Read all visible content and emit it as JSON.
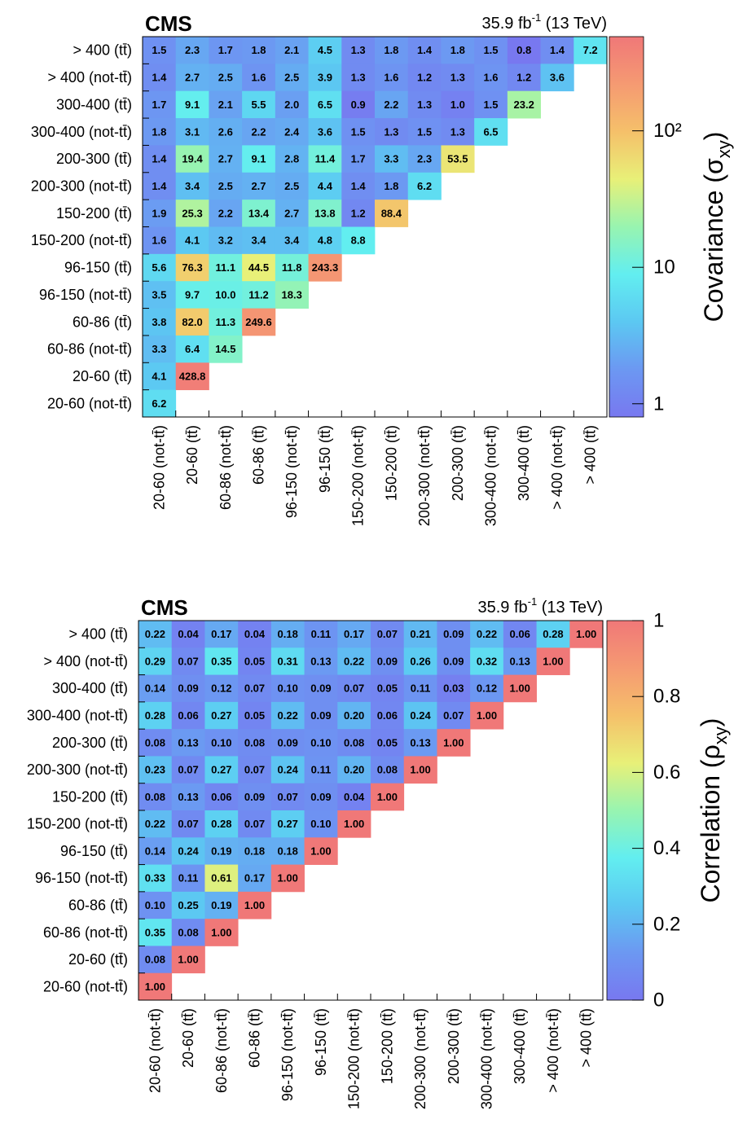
{
  "chart_data": [
    {
      "type": "heatmap",
      "title": "CMS",
      "lumi": [
        "35.9 fb",
        "-1",
        " (13 TeV)"
      ],
      "zlabel": [
        "Covariance (σ",
        "xy",
        ")"
      ],
      "log_z": true,
      "zlim": [
        0.8,
        490
      ],
      "zticks": [
        1,
        10,
        {
          "value": 100,
          "label": "10²"
        }
      ],
      "colorscale": [
        "#7878f0",
        "#6c98f2",
        "#5cc8f2",
        "#62eef0",
        "#98f4b0",
        "#e8f078",
        "#f5c06a",
        "#f59a72",
        "#f07878"
      ],
      "x_categories": [
        "20-60 (not-tt̄)",
        "20-60 (tt̄)",
        "60-86 (not-tt̄)",
        "60-86 (tt̄)",
        "96-150 (not-tt̄)",
        "96-150 (tt̄)",
        "150-200 (not-tt̄)",
        "150-200 (tt̄)",
        "200-300 (not-tt̄)",
        "200-300 (tt̄)",
        "300-400 (not-tt̄)",
        "300-400 (tt̄)",
        "> 400 (not-tt̄)",
        "> 400 (tt̄)"
      ],
      "y_categories": [
        "> 400 (tt̄)",
        "> 400 (not-tt̄)",
        "300-400 (tt̄)",
        "300-400 (not-tt̄)",
        "200-300 (tt̄)",
        "200-300 (not-tt̄)",
        "150-200 (tt̄)",
        "150-200 (not-tt̄)",
        "96-150 (tt̄)",
        "96-150 (not-tt̄)",
        "60-86 (tt̄)",
        "60-86 (not-tt̄)",
        "20-60 (tt̄)",
        "20-60 (not-tt̄)"
      ],
      "values": [
        [
          1.5,
          2.3,
          1.7,
          1.8,
          2.1,
          4.5,
          1.3,
          1.8,
          1.4,
          1.8,
          1.5,
          0.8,
          1.4,
          7.2
        ],
        [
          1.4,
          2.7,
          2.5,
          1.6,
          2.5,
          3.9,
          1.3,
          1.6,
          1.2,
          1.3,
          1.6,
          1.2,
          3.6,
          null
        ],
        [
          1.7,
          9.1,
          2.1,
          5.5,
          2.0,
          6.5,
          0.9,
          2.2,
          1.3,
          1.0,
          1.5,
          23.2,
          null,
          null
        ],
        [
          1.8,
          3.1,
          2.6,
          2.2,
          2.4,
          3.6,
          1.5,
          1.3,
          1.5,
          1.3,
          6.5,
          null,
          null,
          null
        ],
        [
          1.4,
          19.4,
          2.7,
          9.1,
          2.8,
          11.4,
          1.7,
          3.3,
          2.3,
          53.5,
          null,
          null,
          null,
          null
        ],
        [
          1.4,
          3.4,
          2.5,
          2.7,
          2.5,
          4.4,
          1.4,
          1.8,
          6.2,
          null,
          null,
          null,
          null,
          null
        ],
        [
          1.9,
          25.3,
          2.2,
          13.4,
          2.7,
          13.8,
          1.2,
          88.4,
          null,
          null,
          null,
          null,
          null,
          null
        ],
        [
          1.6,
          4.1,
          3.2,
          3.4,
          3.4,
          4.8,
          8.8,
          null,
          null,
          null,
          null,
          null,
          null,
          null
        ],
        [
          5.6,
          76.3,
          11.1,
          44.5,
          11.8,
          243.3,
          null,
          null,
          null,
          null,
          null,
          null,
          null,
          null
        ],
        [
          3.5,
          9.7,
          10.0,
          11.2,
          18.3,
          null,
          null,
          null,
          null,
          null,
          null,
          null,
          null,
          null
        ],
        [
          3.8,
          82.0,
          11.3,
          249.6,
          null,
          null,
          null,
          null,
          null,
          null,
          null,
          null,
          null,
          null
        ],
        [
          3.3,
          6.4,
          14.5,
          null,
          null,
          null,
          null,
          null,
          null,
          null,
          null,
          null,
          null,
          null
        ],
        [
          4.1,
          428.8,
          null,
          null,
          null,
          null,
          null,
          null,
          null,
          null,
          null,
          null,
          null,
          null
        ],
        [
          6.2,
          null,
          null,
          null,
          null,
          null,
          null,
          null,
          null,
          null,
          null,
          null,
          null,
          null
        ]
      ],
      "value_labels": [
        [
          "1.5",
          "2.3",
          "1.7",
          "1.8",
          "2.1",
          "4.5",
          "1.3",
          "1.8",
          "1.4",
          "1.8",
          "1.5",
          "0.8",
          "1.4",
          "7.2"
        ],
        [
          "1.4",
          "2.7",
          "2.5",
          "1.6",
          "2.5",
          "3.9",
          "1.3",
          "1.6",
          "1.2",
          "1.3",
          "1.6",
          "1.2",
          "3.6",
          null
        ],
        [
          "1.7",
          "9.1",
          "2.1",
          "5.5",
          "2.0",
          "6.5",
          "0.9",
          "2.2",
          "1.3",
          "1.0",
          "1.5",
          "23.2",
          null,
          null
        ],
        [
          "1.8",
          "3.1",
          "2.6",
          "2.2",
          "2.4",
          "3.6",
          "1.5",
          "1.3",
          "1.5",
          "1.3",
          "6.5",
          null,
          null,
          null
        ],
        [
          "1.4",
          "19.4",
          "2.7",
          "9.1",
          "2.8",
          "11.4",
          "1.7",
          "3.3",
          "2.3",
          "53.5",
          null,
          null,
          null,
          null
        ],
        [
          "1.4",
          "3.4",
          "2.5",
          "2.7",
          "2.5",
          "4.4",
          "1.4",
          "1.8",
          "6.2",
          null,
          null,
          null,
          null,
          null
        ],
        [
          "1.9",
          "25.3",
          "2.2",
          "13.4",
          "2.7",
          "13.8",
          "1.2",
          "88.4",
          null,
          null,
          null,
          null,
          null,
          null
        ],
        [
          "1.6",
          "4.1",
          "3.2",
          "3.4",
          "3.4",
          "4.8",
          "8.8",
          null,
          null,
          null,
          null,
          null,
          null,
          null
        ],
        [
          "5.6",
          "76.3",
          "11.1",
          "44.5",
          "11.8",
          "243.3",
          null,
          null,
          null,
          null,
          null,
          null,
          null,
          null
        ],
        [
          "3.5",
          "9.7",
          "10.0",
          "11.2",
          "18.3",
          null,
          null,
          null,
          null,
          null,
          null,
          null,
          null,
          null
        ],
        [
          "3.8",
          "82.0",
          "11.3",
          "249.6",
          null,
          null,
          null,
          null,
          null,
          null,
          null,
          null,
          null,
          null
        ],
        [
          "3.3",
          "6.4",
          "14.5",
          null,
          null,
          null,
          null,
          null,
          null,
          null,
          null,
          null,
          null,
          null
        ],
        [
          "4.1",
          "428.8",
          null,
          null,
          null,
          null,
          null,
          null,
          null,
          null,
          null,
          null,
          null,
          null
        ],
        [
          "6.2",
          null,
          null,
          null,
          null,
          null,
          null,
          null,
          null,
          null,
          null,
          null,
          null,
          null
        ]
      ]
    },
    {
      "type": "heatmap",
      "title": "CMS",
      "lumi": [
        "35.9 fb",
        "-1",
        " (13 TeV)"
      ],
      "zlabel": [
        "Correlation (ρ",
        "xy",
        ")"
      ],
      "log_z": false,
      "zlim": [
        0,
        1
      ],
      "zticks": [
        0,
        0.2,
        0.4,
        0.6,
        0.8,
        1
      ],
      "colorscale": [
        "#7878f0",
        "#6c98f2",
        "#5cc8f2",
        "#62eef0",
        "#98f4b0",
        "#e8f078",
        "#f5c06a",
        "#f59a72",
        "#f07878"
      ],
      "x_categories": [
        "20-60 (not-tt̄)",
        "20-60 (tt̄)",
        "60-86 (not-tt̄)",
        "60-86 (tt̄)",
        "96-150 (not-tt̄)",
        "96-150 (tt̄)",
        "150-200 (not-tt̄)",
        "150-200 (tt̄)",
        "200-300 (not-tt̄)",
        "200-300 (tt̄)",
        "300-400 (not-tt̄)",
        "300-400 (tt̄)",
        "> 400 (not-tt̄)",
        "> 400 (tt̄)"
      ],
      "y_categories": [
        "> 400 (tt̄)",
        "> 400 (not-tt̄)",
        "300-400 (tt̄)",
        "300-400 (not-tt̄)",
        "200-300 (tt̄)",
        "200-300 (not-tt̄)",
        "150-200 (tt̄)",
        "150-200 (not-tt̄)",
        "96-150 (tt̄)",
        "96-150 (not-tt̄)",
        "60-86 (tt̄)",
        "60-86 (not-tt̄)",
        "20-60 (tt̄)",
        "20-60 (not-tt̄)"
      ],
      "values": [
        [
          0.22,
          0.04,
          0.17,
          0.04,
          0.18,
          0.11,
          0.17,
          0.07,
          0.21,
          0.09,
          0.22,
          0.06,
          0.28,
          1.0
        ],
        [
          0.29,
          0.07,
          0.35,
          0.05,
          0.31,
          0.13,
          0.22,
          0.09,
          0.26,
          0.09,
          0.32,
          0.13,
          1.0,
          null
        ],
        [
          0.14,
          0.09,
          0.12,
          0.07,
          0.1,
          0.09,
          0.07,
          0.05,
          0.11,
          0.03,
          0.12,
          1.0,
          null,
          null
        ],
        [
          0.28,
          0.06,
          0.27,
          0.05,
          0.22,
          0.09,
          0.2,
          0.06,
          0.24,
          0.07,
          1.0,
          null,
          null,
          null
        ],
        [
          0.08,
          0.13,
          0.1,
          0.08,
          0.09,
          0.1,
          0.08,
          0.05,
          0.13,
          1.0,
          null,
          null,
          null,
          null
        ],
        [
          0.23,
          0.07,
          0.27,
          0.07,
          0.24,
          0.11,
          0.2,
          0.08,
          1.0,
          null,
          null,
          null,
          null,
          null
        ],
        [
          0.08,
          0.13,
          0.06,
          0.09,
          0.07,
          0.09,
          0.04,
          1.0,
          null,
          null,
          null,
          null,
          null,
          null
        ],
        [
          0.22,
          0.07,
          0.28,
          0.07,
          0.27,
          0.1,
          1.0,
          null,
          null,
          null,
          null,
          null,
          null,
          null
        ],
        [
          0.14,
          0.24,
          0.19,
          0.18,
          0.18,
          1.0,
          null,
          null,
          null,
          null,
          null,
          null,
          null,
          null
        ],
        [
          0.33,
          0.11,
          0.61,
          0.17,
          1.0,
          null,
          null,
          null,
          null,
          null,
          null,
          null,
          null,
          null
        ],
        [
          0.1,
          0.25,
          0.19,
          1.0,
          null,
          null,
          null,
          null,
          null,
          null,
          null,
          null,
          null,
          null
        ],
        [
          0.35,
          0.08,
          1.0,
          null,
          null,
          null,
          null,
          null,
          null,
          null,
          null,
          null,
          null,
          null
        ],
        [
          0.08,
          1.0,
          null,
          null,
          null,
          null,
          null,
          null,
          null,
          null,
          null,
          null,
          null,
          null
        ],
        [
          1.0,
          null,
          null,
          null,
          null,
          null,
          null,
          null,
          null,
          null,
          null,
          null,
          null,
          null
        ]
      ],
      "value_labels": [
        [
          "0.22",
          "0.04",
          "0.17",
          "0.04",
          "0.18",
          "0.11",
          "0.17",
          "0.07",
          "0.21",
          "0.09",
          "0.22",
          "0.06",
          "0.28",
          "1.00"
        ],
        [
          "0.29",
          "0.07",
          "0.35",
          "0.05",
          "0.31",
          "0.13",
          "0.22",
          "0.09",
          "0.26",
          "0.09",
          "0.32",
          "0.13",
          "1.00",
          null
        ],
        [
          "0.14",
          "0.09",
          "0.12",
          "0.07",
          "0.10",
          "0.09",
          "0.07",
          "0.05",
          "0.11",
          "0.03",
          "0.12",
          "1.00",
          null,
          null
        ],
        [
          "0.28",
          "0.06",
          "0.27",
          "0.05",
          "0.22",
          "0.09",
          "0.20",
          "0.06",
          "0.24",
          "0.07",
          "1.00",
          null,
          null,
          null
        ],
        [
          "0.08",
          "0.13",
          "0.10",
          "0.08",
          "0.09",
          "0.10",
          "0.08",
          "0.05",
          "0.13",
          "1.00",
          null,
          null,
          null,
          null
        ],
        [
          "0.23",
          "0.07",
          "0.27",
          "0.07",
          "0.24",
          "0.11",
          "0.20",
          "0.08",
          "1.00",
          null,
          null,
          null,
          null,
          null
        ],
        [
          "0.08",
          "0.13",
          "0.06",
          "0.09",
          "0.07",
          "0.09",
          "0.04",
          "1.00",
          null,
          null,
          null,
          null,
          null,
          null
        ],
        [
          "0.22",
          "0.07",
          "0.28",
          "0.07",
          "0.27",
          "0.10",
          "1.00",
          null,
          null,
          null,
          null,
          null,
          null,
          null
        ],
        [
          "0.14",
          "0.24",
          "0.19",
          "0.18",
          "0.18",
          "1.00",
          null,
          null,
          null,
          null,
          null,
          null,
          null,
          null
        ],
        [
          "0.33",
          "0.11",
          "0.61",
          "0.17",
          "1.00",
          null,
          null,
          null,
          null,
          null,
          null,
          null,
          null,
          null
        ],
        [
          "0.10",
          "0.25",
          "0.19",
          "1.00",
          null,
          null,
          null,
          null,
          null,
          null,
          null,
          null,
          null,
          null
        ],
        [
          "0.35",
          "0.08",
          "1.00",
          null,
          null,
          null,
          null,
          null,
          null,
          null,
          null,
          null,
          null,
          null
        ],
        [
          "0.08",
          "1.00",
          null,
          null,
          null,
          null,
          null,
          null,
          null,
          null,
          null,
          null,
          null,
          null
        ],
        [
          "1.00",
          null,
          null,
          null,
          null,
          null,
          null,
          null,
          null,
          null,
          null,
          null,
          null,
          null
        ]
      ]
    }
  ]
}
